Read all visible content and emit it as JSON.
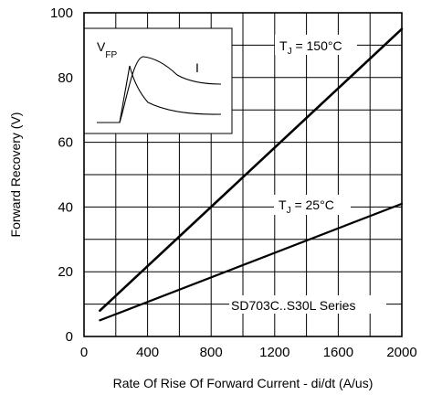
{
  "chart_data": {
    "type": "line",
    "xlabel": "Rate Of Rise Of Forward Current - di/dt (A/us)",
    "ylabel": "Forward Recovery (V)",
    "xlim": [
      0,
      2000
    ],
    "ylim": [
      0,
      100
    ],
    "x_ticks": [
      0,
      400,
      800,
      1200,
      1600,
      2000
    ],
    "y_ticks": [
      0,
      20,
      40,
      60,
      80,
      100
    ],
    "grid": true,
    "series": [
      {
        "name": "T_J = 150°C",
        "label_main": "T",
        "label_sub": "J",
        "label_rest": " = 150°C",
        "x": [
          100,
          2000
        ],
        "y": [
          8,
          95
        ]
      },
      {
        "name": "T_J = 25°C",
        "label_main": "T",
        "label_sub": "J",
        "label_rest": " = 25°C",
        "x": [
          100,
          2000
        ],
        "y": [
          5,
          41
        ]
      }
    ],
    "annotations": {
      "series_name": "SD703C..S30L Series",
      "inset_vfp_main": "V",
      "inset_vfp_sub": "FP",
      "inset_i": "I"
    }
  }
}
